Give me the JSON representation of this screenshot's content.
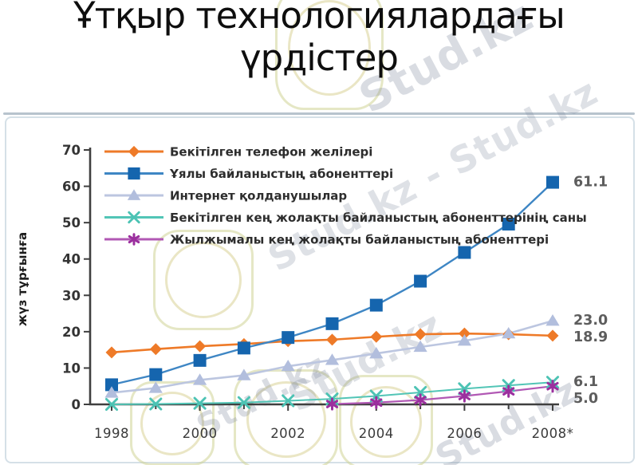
{
  "slide": {
    "title_line1": "Ұтқыр технологиялардағы",
    "title_line2": "үрдістер"
  },
  "watermark": {
    "text": "Stud.kz",
    "text_long": "Stud.kz - Stud.kz"
  },
  "chart_data": {
    "type": "line",
    "title": "",
    "xlabel": "",
    "ylabel": "жүз тұрғынға",
    "ylim": [
      0,
      70
    ],
    "ytick_step": 10,
    "grid": false,
    "legend_position": "top-left-inside",
    "x": [
      1998,
      1999,
      2000,
      2001,
      2002,
      2003,
      2004,
      2005,
      2006,
      2007,
      2008
    ],
    "xtick_labels": [
      "1998",
      "2000",
      "2002",
      "2004",
      "2006",
      "2008*"
    ],
    "axis_color": "#3f3f3f",
    "series": [
      {
        "name": "Бекітілген телефон желілері",
        "marker": "diamond",
        "color": "#ee7a28",
        "marker_color": "#ee7a28",
        "values": [
          14.3,
          15.2,
          16.0,
          16.6,
          17.4,
          17.8,
          18.6,
          19.3,
          19.5,
          19.3,
          18.9
        ],
        "end_label": "18.9"
      },
      {
        "name": "Ұялы байланыстың абоненттері",
        "marker": "square",
        "color": "#3e86c4",
        "marker_color": "#1565ae",
        "values": [
          5.4,
          8.2,
          12.1,
          15.5,
          18.4,
          22.2,
          27.3,
          33.9,
          41.8,
          49.6,
          61.1
        ],
        "end_label": "61.1"
      },
      {
        "name": "Интернет қолданушылар",
        "marker": "triangle",
        "color": "#bcc6e0",
        "marker_color": "#b2bedd",
        "values": [
          3.2,
          4.5,
          6.7,
          8.0,
          10.5,
          12.2,
          14.0,
          15.8,
          17.5,
          19.5,
          23.0
        ],
        "end_label": "23.0"
      },
      {
        "name": "Бекітілген кең жолақты байланыстың абоненттерінің саны",
        "marker": "x",
        "color": "#52c5b6",
        "marker_color": "#4cc3b4",
        "values": [
          0.0,
          0.1,
          0.3,
          0.5,
          1.0,
          1.5,
          2.3,
          3.3,
          4.3,
          5.2,
          6.1
        ],
        "end_label": "6.1"
      },
      {
        "name": "Жылжымалы кең жолақты байланыстың абоненттері",
        "marker": "asterisk",
        "color": "#b158b4",
        "marker_color": "#9b2f9e",
        "values": [
          null,
          null,
          null,
          null,
          null,
          0.1,
          0.5,
          1.2,
          2.3,
          3.6,
          5.0
        ],
        "end_label": "5.0"
      }
    ]
  }
}
